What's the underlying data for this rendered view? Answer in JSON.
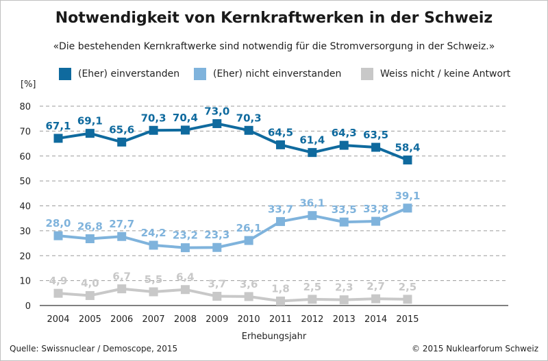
{
  "title": "Notwendigkeit von Kernkraftwerken in der Schweiz",
  "subtitle": "«Die bestehenden Kernkraftwerke sind notwendig für die Stromversorgung in der Schweiz.»",
  "unit_label": "[%]",
  "source": "Quelle: Swissnuclear / Demoscope, 2015",
  "copyright": "© 2015 Nuklearforum Schweiz",
  "chart_data": {
    "type": "line",
    "title": "Notwendigkeit von Kernkraftwerken in der Schweiz",
    "xlabel": "Erhebungsjahr",
    "ylabel": "[%]",
    "ylim": [
      0,
      80
    ],
    "yticks": [
      0,
      10,
      20,
      30,
      40,
      50,
      60,
      70,
      80
    ],
    "grid": true,
    "legend_position": "top",
    "x": [
      "2004",
      "2005",
      "2006",
      "2007",
      "2008",
      "2009",
      "2010",
      "2011",
      "2012",
      "2013",
      "2014",
      "2015"
    ],
    "series": [
      {
        "name": "(Eher) einverstanden",
        "color": "#0f6a9e",
        "label_color": "#0f6a9e",
        "values": [
          67.1,
          69.1,
          65.6,
          70.3,
          70.4,
          73.0,
          70.3,
          64.5,
          61.4,
          64.3,
          63.5,
          58.4
        ],
        "labels": [
          "67,1",
          "69,1",
          "65,6",
          "70,3",
          "70,4",
          "73,0",
          "70,3",
          "64,5",
          "61,4",
          "64,3",
          "63,5",
          "58,4"
        ]
      },
      {
        "name": "(Eher) nicht einverstanden",
        "color": "#7fb3dc",
        "label_color": "#7fb3dc",
        "values": [
          28.0,
          26.8,
          27.7,
          24.2,
          23.2,
          23.3,
          26.1,
          33.7,
          36.1,
          33.5,
          33.8,
          39.1
        ],
        "labels": [
          "28,0",
          "26,8",
          "27,7",
          "24,2",
          "23,2",
          "23,3",
          "26,1",
          "33,7",
          "36,1",
          "33,5",
          "33,8",
          "39,1"
        ]
      },
      {
        "name": "Weiss nicht / keine Antwort",
        "color": "#c8c8c8",
        "label_color": "#c8c8c8",
        "values": [
          4.9,
          4.0,
          6.7,
          5.5,
          6.4,
          3.7,
          3.6,
          1.8,
          2.5,
          2.3,
          2.7,
          2.5
        ],
        "labels": [
          "4,9",
          "4,0",
          "6,7",
          "5,5",
          "6,4",
          "3,7",
          "3,6",
          "1,8",
          "2,5",
          "2,3",
          "2,7",
          "2,5"
        ]
      }
    ]
  }
}
